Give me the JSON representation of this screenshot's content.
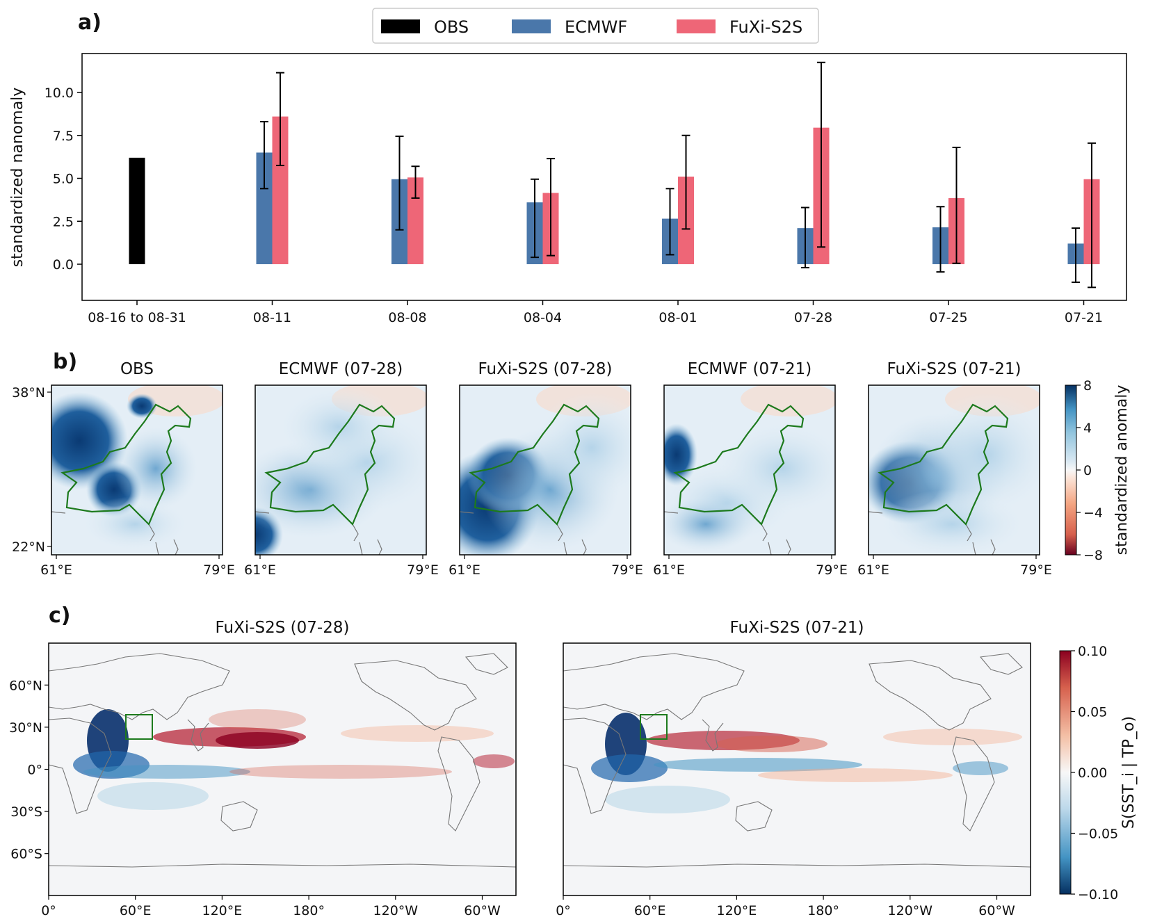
{
  "panel_labels": {
    "a": "a)",
    "b": "b)",
    "c": "c)"
  },
  "colors": {
    "obs": "#000000",
    "ecmwf": "#4a77aa",
    "fuxi": "#ee6677",
    "border": "#1d7a1d",
    "coast": "#777777"
  },
  "chart_data": [
    {
      "type": "bar",
      "panel": "a",
      "categories": [
        "08-16 to 08-31",
        "08-11",
        "08-08",
        "08-04",
        "08-01",
        "07-28",
        "07-25",
        "07-21"
      ],
      "ylabel": "standardized nanomaly",
      "xlabel": "",
      "ylim": [
        -2.0,
        12.0
      ],
      "yticks": [
        "0.0",
        "2.5",
        "5.0",
        "7.5",
        "10.0"
      ],
      "legend": [
        "OBS",
        "ECMWF",
        "FuXi-S2S"
      ],
      "legend_position": "top-center",
      "series": [
        {
          "name": "OBS",
          "values": [
            6.2,
            null,
            null,
            null,
            null,
            null,
            null,
            null
          ]
        },
        {
          "name": "ECMWF",
          "values": [
            null,
            6.5,
            4.95,
            3.6,
            2.65,
            2.1,
            2.15,
            1.2
          ],
          "err_low": [
            null,
            4.4,
            2.0,
            0.4,
            0.55,
            -0.2,
            -0.45,
            -1.05
          ],
          "err_high": [
            null,
            8.3,
            7.45,
            4.95,
            4.4,
            3.3,
            3.35,
            2.1
          ]
        },
        {
          "name": "FuXi-S2S",
          "values": [
            null,
            8.6,
            5.05,
            4.15,
            5.1,
            7.95,
            3.85,
            4.95
          ],
          "err_low": [
            null,
            5.75,
            3.85,
            0.5,
            2.05,
            1.0,
            0.05,
            -1.35
          ],
          "err_high": [
            null,
            11.15,
            5.7,
            6.15,
            7.5,
            11.75,
            6.8,
            7.05
          ]
        }
      ]
    },
    {
      "type": "heatmap",
      "panel": "b",
      "subplots": [
        {
          "title": "OBS"
        },
        {
          "title": "ECMWF (07-28)"
        },
        {
          "title": "FuXi-S2S (07-28)"
        },
        {
          "title": "ECMWF (07-21)"
        },
        {
          "title": "FuXi-S2S (07-21)"
        }
      ],
      "ytick_labels": [
        "38°N",
        "22°N"
      ],
      "xtick_labels": [
        "61°E",
        "79°E"
      ],
      "colorbar": {
        "label": "standardized anomaly",
        "ticks": [
          "8",
          "4",
          "0",
          "−4",
          "−8"
        ],
        "range": [
          -8,
          8
        ]
      }
    },
    {
      "type": "heatmap",
      "panel": "c",
      "subplots": [
        {
          "title": "FuXi-S2S (07-28)"
        },
        {
          "title": "FuXi-S2S (07-21)"
        }
      ],
      "ytick_labels": [
        "60°N",
        "30°N",
        "0°",
        "30°S",
        "60°S"
      ],
      "xtick_labels": [
        "0°",
        "60°E",
        "120°E",
        "180°",
        "120°W",
        "60°W"
      ],
      "colorbar": {
        "label": "S(SST_i | TP_o)",
        "ticks": [
          "0.10",
          "0.05",
          "0.00",
          "−0.05",
          "−0.10"
        ],
        "range": [
          -0.1,
          0.1
        ]
      }
    }
  ]
}
